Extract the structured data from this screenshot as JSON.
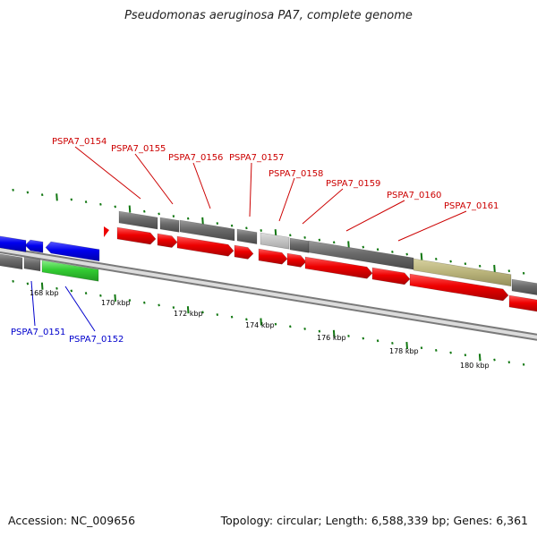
{
  "title": "Pseudomonas aeruginosa PA7, complete genome",
  "accession": "Accession: NC_009656",
  "summary": "Topology: circular; Length: 6,588,339 bp; Genes: 6,361",
  "colors": {
    "forward_gene": "#ee0000",
    "reverse_gene": "#0000ee",
    "gene_gray": "#6e6e6e",
    "gene_lightgray": "#c2c2c2",
    "gene_green": "#33cc33",
    "gene_olive": "#b9b37a",
    "backbone": "#8c8c8c",
    "tick": "#117711",
    "label_red": "#cc0000",
    "label_blue": "#0000cc"
  },
  "scale_labels": [
    "168 kbp",
    "170 kbp",
    "172 kbp",
    "174 kbp",
    "176 kbp",
    "178 kbp",
    "180 kbp"
  ],
  "gene_labels_top": [
    "PSPA7_0154",
    "PSPA7_0155",
    "PSPA7_0156",
    "PSPA7_0157",
    "PSPA7_0158",
    "PSPA7_0159",
    "PSPA7_0160",
    "PSPA7_0161"
  ],
  "gene_labels_bottom": [
    "PSPA7_0151",
    "PSPA7_0152"
  ]
}
